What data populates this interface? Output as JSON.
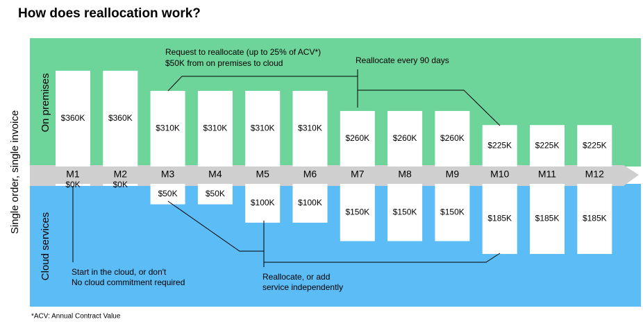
{
  "chart_data": {
    "type": "bar",
    "title": "How does reallocation work?",
    "y_label": "Single order, single invoice",
    "categories": [
      "M1",
      "M2",
      "M3",
      "M4",
      "M5",
      "M6",
      "M7",
      "M8",
      "M9",
      "M10",
      "M11",
      "M12"
    ],
    "series": [
      {
        "name": "On premises",
        "color": "#6dd49a",
        "values": [
          360,
          360,
          310,
          310,
          310,
          310,
          260,
          260,
          260,
          225,
          225,
          225
        ],
        "value_labels": [
          "$360K",
          "$360K",
          "$310K",
          "$310K",
          "$310K",
          "$310K",
          "$260K",
          "$260K",
          "$260K",
          "$225K",
          "$225K",
          "$225K"
        ]
      },
      {
        "name": "Cloud services",
        "color": "#5bbcf6",
        "values": [
          0,
          0,
          50,
          50,
          100,
          100,
          150,
          150,
          150,
          185,
          185,
          185
        ],
        "value_labels": [
          "$0K",
          "$0K",
          "$50K",
          "$50K",
          "$100K",
          "$100K",
          "$150K",
          "$150K",
          "$150K",
          "$185K",
          "$185K",
          "$185K"
        ]
      }
    ],
    "annotations": [
      [
        "Request to reallocate (up to 25% of ACV*)",
        "$50K from on premises to cloud"
      ],
      [
        "Reallocate every 90 days"
      ],
      [
        "Start in the cloud, or don't",
        "No cloud commitment required"
      ],
      [
        "Reallocate, or add",
        "service independently"
      ]
    ],
    "footnote": "*ACV: Annual Contract Value"
  }
}
